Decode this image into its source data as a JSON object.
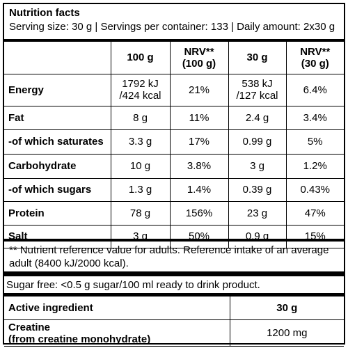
{
  "header": {
    "title": "Nutrition facts",
    "serving": "Serving size: 30 g | Servings per container: 133 | Daily amount: 2x30 g"
  },
  "table": {
    "columns": [
      "",
      "100 g",
      "NRV**",
      "(100 g)",
      "30 g",
      "NRV**",
      "(30 g)"
    ],
    "col_100g": "100 g",
    "col_nrv100_a": "NRV**",
    "col_nrv100_b": "(100 g)",
    "col_30g": "30 g",
    "col_nrv30_a": "NRV**",
    "col_nrv30_b": "(30 g)",
    "rows": [
      {
        "label": "Energy",
        "v100a": "1792 kJ",
        "v100b": "/424 kcal",
        "nrv100": "21%",
        "v30a": "538 kJ",
        "v30b": "/127 kcal",
        "nrv30": "6.4%"
      },
      {
        "label": "Fat",
        "v100": "8 g",
        "nrv100": "11%",
        "v30": "2.4 g",
        "nrv30": "3.4%"
      },
      {
        "label": "-of which saturates",
        "v100": "3.3 g",
        "nrv100": "17%",
        "v30": "0.99 g",
        "nrv30": "5%"
      },
      {
        "label": "Carbohydrate",
        "v100": "10 g",
        "nrv100": "3.8%",
        "v30": "3 g",
        "nrv30": "1.2%"
      },
      {
        "label": "-of which sugars",
        "v100": "1.3 g",
        "nrv100": "1.4%",
        "v30": "0.39 g",
        "nrv30": "0.43%"
      },
      {
        "label": "Protein",
        "v100": "78 g",
        "nrv100": "156%",
        "v30": "23 g",
        "nrv30": "47%"
      },
      {
        "label": "Salt",
        "v100": "3 g",
        "nrv100": "50%",
        "v30": "0.9 g",
        "nrv30": "15%"
      }
    ]
  },
  "footnote": "** Nutrient reference value for adults. Reference intake of an average adult (8400 kJ/2000 kcal).",
  "sugar_free": "Sugar free: <0.5 g sugar/100 ml ready to drink product.",
  "active": {
    "head_label": "Active ingredient",
    "head_amount": "30 g",
    "rows": [
      {
        "label_a": "Creatine",
        "label_b": "(from creatine monohydrate)",
        "amount": "1200 mg"
      }
    ]
  }
}
